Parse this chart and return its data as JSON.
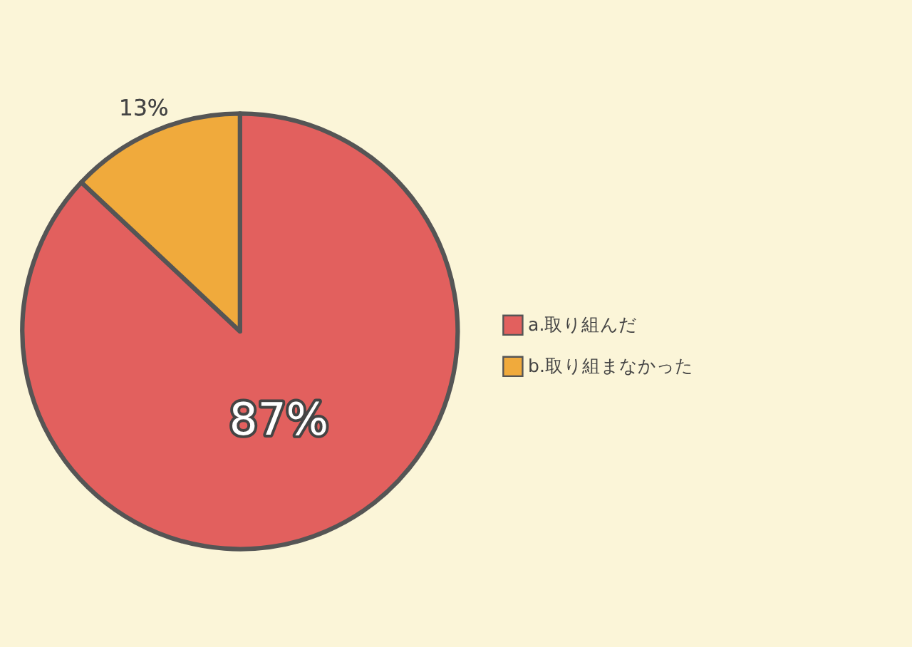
{
  "chart_data": {
    "type": "pie",
    "categories": [
      "a.取り組んだ",
      "b.取り組まなかった"
    ],
    "values": [
      87,
      13
    ],
    "colors": [
      "#e2605e",
      "#f0aa3c"
    ],
    "value_labels": [
      "87%",
      "13%"
    ],
    "legend": "right"
  }
}
